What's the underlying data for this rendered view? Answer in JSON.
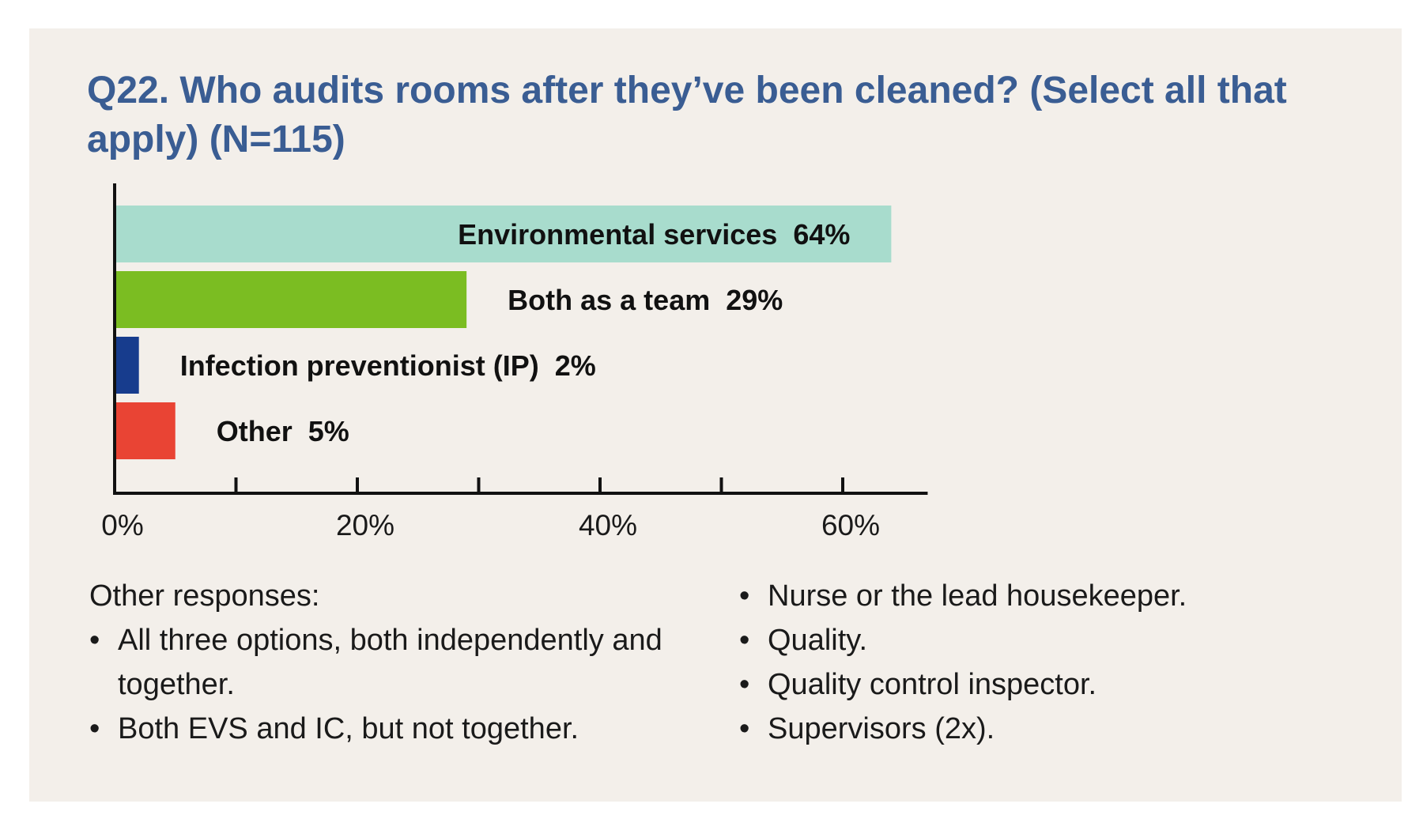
{
  "title": "Q22. Who audits rooms after they’ve been cleaned? (Select all that apply) (N=115)",
  "chart_data": {
    "type": "bar",
    "orientation": "horizontal",
    "categories": [
      "Environmental services",
      "Both as a team",
      "Infection preventionist (IP)",
      "Other"
    ],
    "values": [
      64,
      29,
      2,
      5
    ],
    "value_labels": [
      "64%",
      "29%",
      "2%",
      "5%"
    ],
    "colors": [
      "#a8dccd",
      "#7bbd22",
      "#173c8d",
      "#e94434"
    ],
    "xlim": [
      0,
      67
    ],
    "x_tick_values": [
      0,
      10,
      20,
      30,
      40,
      50,
      60
    ],
    "x_tick_labels": [
      "0%",
      "",
      "20%",
      "",
      "40%",
      "",
      "60%"
    ],
    "grid": false,
    "legend": "none"
  },
  "notes": {
    "heading": "Other responses:",
    "left_items": [
      "All three options, both independently and together.",
      "Both EVS and IC, but not together."
    ],
    "right_items": [
      "Nurse or the lead housekeeper.",
      "Quality.",
      "Quality control inspector.",
      "Supervisors (2x)."
    ]
  }
}
